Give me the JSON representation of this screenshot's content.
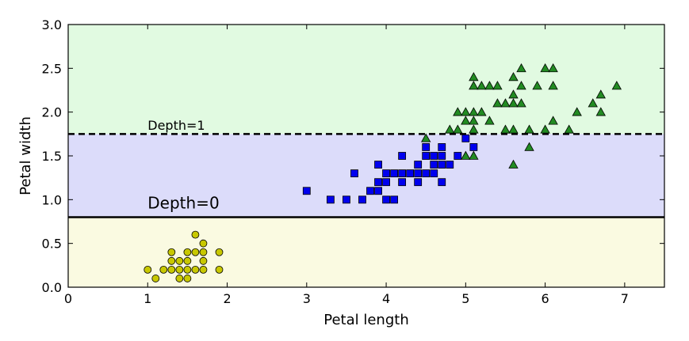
{
  "chart_data": {
    "type": "scatter",
    "title": "",
    "xlabel": "Petal length",
    "ylabel": "Petal width",
    "xlim": [
      0,
      7.5
    ],
    "ylim": [
      0,
      3.0
    ],
    "x_ticks": [
      "0",
      "1",
      "2",
      "3",
      "4",
      "5",
      "6",
      "7"
    ],
    "y_ticks": [
      "0.0",
      "0.5",
      "1.0",
      "1.5",
      "2.0",
      "2.5",
      "3.0"
    ],
    "grid": false,
    "regions": [
      {
        "y_from": 0.0,
        "y_to": 0.8,
        "color": "#fafae1"
      },
      {
        "y_from": 0.8,
        "y_to": 1.75,
        "color": "#dcdcfa"
      },
      {
        "y_from": 1.75,
        "y_to": 3.0,
        "color": "#e1fae1"
      }
    ],
    "thresholds": [
      {
        "y": 0.8,
        "style": "solid",
        "label": "Depth=0",
        "label_x": 1.0,
        "label_y": 0.9,
        "size": "large"
      },
      {
        "y": 1.75,
        "style": "dashed",
        "label": "Depth=1",
        "label_x": 1.0,
        "label_y": 1.8,
        "size": "small"
      }
    ],
    "series": [
      {
        "marker": "circle",
        "color": "#c8c800",
        "points": [
          [
            1.0,
            0.2
          ],
          [
            1.1,
            0.1
          ],
          [
            1.2,
            0.2
          ],
          [
            1.3,
            0.2
          ],
          [
            1.3,
            0.3
          ],
          [
            1.3,
            0.4
          ],
          [
            1.4,
            0.1
          ],
          [
            1.4,
            0.2
          ],
          [
            1.4,
            0.3
          ],
          [
            1.5,
            0.1
          ],
          [
            1.5,
            0.2
          ],
          [
            1.5,
            0.3
          ],
          [
            1.5,
            0.4
          ],
          [
            1.6,
            0.2
          ],
          [
            1.6,
            0.4
          ],
          [
            1.6,
            0.6
          ],
          [
            1.7,
            0.2
          ],
          [
            1.7,
            0.3
          ],
          [
            1.7,
            0.4
          ],
          [
            1.7,
            0.5
          ],
          [
            1.9,
            0.2
          ],
          [
            1.9,
            0.4
          ]
        ]
      },
      {
        "marker": "square",
        "color": "#0000ee",
        "points": [
          [
            3.0,
            1.1
          ],
          [
            3.3,
            1.0
          ],
          [
            3.5,
            1.0
          ],
          [
            3.6,
            1.3
          ],
          [
            3.7,
            1.0
          ],
          [
            3.8,
            1.1
          ],
          [
            3.9,
            1.1
          ],
          [
            3.9,
            1.2
          ],
          [
            3.9,
            1.4
          ],
          [
            4.0,
            1.0
          ],
          [
            4.0,
            1.2
          ],
          [
            4.0,
            1.3
          ],
          [
            4.1,
            1.0
          ],
          [
            4.1,
            1.3
          ],
          [
            4.2,
            1.2
          ],
          [
            4.2,
            1.3
          ],
          [
            4.2,
            1.5
          ],
          [
            4.3,
            1.3
          ],
          [
            4.4,
            1.2
          ],
          [
            4.4,
            1.3
          ],
          [
            4.4,
            1.4
          ],
          [
            4.5,
            1.3
          ],
          [
            4.5,
            1.5
          ],
          [
            4.5,
            1.6
          ],
          [
            4.6,
            1.3
          ],
          [
            4.6,
            1.4
          ],
          [
            4.6,
            1.5
          ],
          [
            4.7,
            1.2
          ],
          [
            4.7,
            1.4
          ],
          [
            4.7,
            1.5
          ],
          [
            4.7,
            1.6
          ],
          [
            4.8,
            1.4
          ],
          [
            4.9,
            1.5
          ],
          [
            5.0,
            1.7
          ],
          [
            5.1,
            1.6
          ]
        ]
      },
      {
        "marker": "triangle",
        "color": "#228b22",
        "points": [
          [
            4.5,
            1.7
          ],
          [
            4.8,
            1.8
          ],
          [
            4.9,
            1.8
          ],
          [
            4.9,
            2.0
          ],
          [
            5.0,
            1.5
          ],
          [
            5.0,
            1.9
          ],
          [
            5.0,
            2.0
          ],
          [
            5.1,
            1.5
          ],
          [
            5.1,
            1.8
          ],
          [
            5.1,
            1.9
          ],
          [
            5.1,
            2.0
          ],
          [
            5.1,
            2.3
          ],
          [
            5.1,
            2.4
          ],
          [
            5.2,
            2.0
          ],
          [
            5.2,
            2.3
          ],
          [
            5.3,
            1.9
          ],
          [
            5.3,
            2.3
          ],
          [
            5.4,
            2.1
          ],
          [
            5.4,
            2.3
          ],
          [
            5.5,
            1.8
          ],
          [
            5.5,
            2.1
          ],
          [
            5.6,
            1.4
          ],
          [
            5.6,
            1.8
          ],
          [
            5.6,
            2.1
          ],
          [
            5.6,
            2.2
          ],
          [
            5.6,
            2.4
          ],
          [
            5.7,
            2.1
          ],
          [
            5.7,
            2.3
          ],
          [
            5.7,
            2.5
          ],
          [
            5.8,
            1.6
          ],
          [
            5.8,
            1.8
          ],
          [
            5.9,
            2.3
          ],
          [
            6.0,
            1.8
          ],
          [
            6.0,
            2.5
          ],
          [
            6.1,
            1.9
          ],
          [
            6.1,
            2.3
          ],
          [
            6.1,
            2.5
          ],
          [
            6.3,
            1.8
          ],
          [
            6.4,
            2.0
          ],
          [
            6.6,
            2.1
          ],
          [
            6.7,
            2.0
          ],
          [
            6.7,
            2.2
          ],
          [
            6.9,
            2.3
          ]
        ]
      }
    ]
  }
}
